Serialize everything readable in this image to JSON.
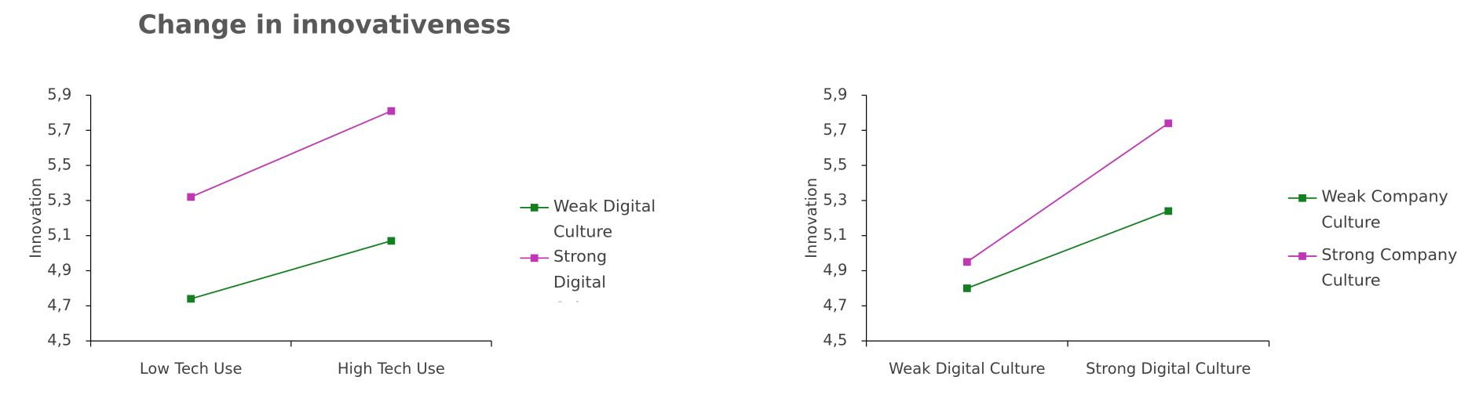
{
  "chart_data": [
    {
      "type": "line",
      "title": "Change in innovativeness",
      "y_label": "Innovation",
      "categories": [
        "Low Tech Use",
        "High Tech Use"
      ],
      "series": [
        {
          "name": "Weak Digital Culture",
          "color": "#13801f",
          "values": [
            4.74,
            5.07
          ]
        },
        {
          "name": "Strong Digital Culture",
          "color": "#c036b4",
          "values": [
            5.32,
            5.81
          ]
        }
      ],
      "ylim": [
        4.5,
        5.9
      ],
      "yticks": [
        {
          "value": 4.5,
          "label": "4,5"
        },
        {
          "value": 4.7,
          "label": "4,7"
        },
        {
          "value": 4.9,
          "label": "4,9"
        },
        {
          "value": 5.1,
          "label": "5,1"
        },
        {
          "value": 5.3,
          "label": "5,3"
        },
        {
          "value": 5.5,
          "label": "5,5"
        },
        {
          "value": 5.7,
          "label": "5,7"
        },
        {
          "value": 5.9,
          "label": "5,9"
        }
      ]
    },
    {
      "type": "line",
      "y_label": "Innovation",
      "categories": [
        "Weak Digital Culture",
        "Strong Digital Culture"
      ],
      "series": [
        {
          "name": "Weak Company Culture",
          "color": "#13801f",
          "values": [
            4.8,
            5.24
          ]
        },
        {
          "name": "Strong Company Culture",
          "color": "#c036b4",
          "values": [
            4.95,
            5.74
          ]
        }
      ],
      "ylim": [
        4.5,
        5.9
      ],
      "yticks": [
        {
          "value": 4.5,
          "label": "4,5"
        },
        {
          "value": 4.7,
          "label": "4,7"
        },
        {
          "value": 4.9,
          "label": "4,9"
        },
        {
          "value": 5.1,
          "label": "5,1"
        },
        {
          "value": 5.3,
          "label": "5,3"
        },
        {
          "value": 5.5,
          "label": "5,5"
        },
        {
          "value": 5.7,
          "label": "5,7"
        },
        {
          "value": 5.9,
          "label": "5,9"
        }
      ]
    }
  ]
}
